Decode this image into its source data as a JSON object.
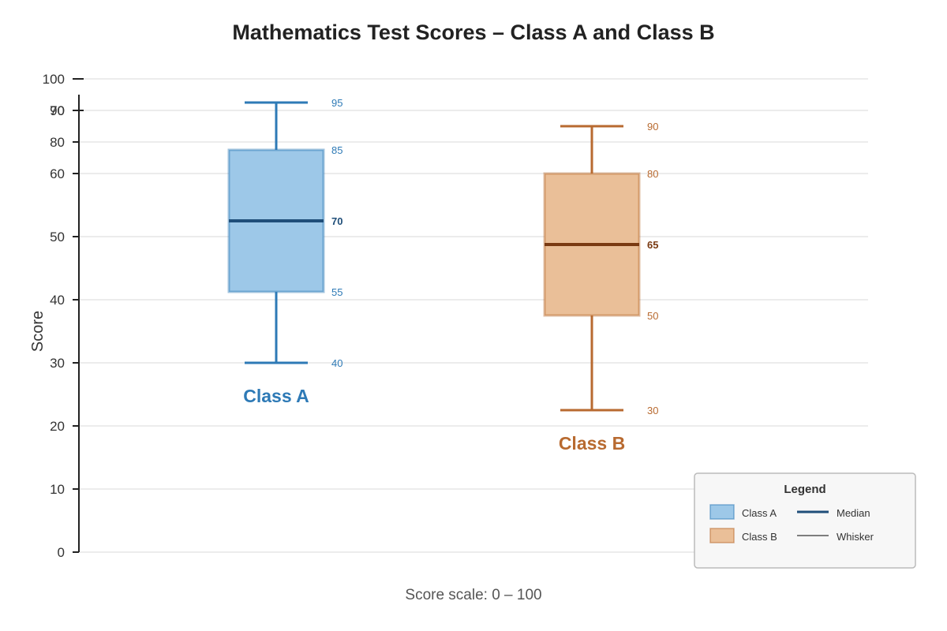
{
  "chart_data": {
    "type": "box",
    "title": "Mathematics Test Scores – Class A and Class B",
    "ylabel": "Score",
    "caption": "Score scale: 0 – 100",
    "ylim": [
      0,
      100
    ],
    "yticks_lower": [
      0,
      10,
      20,
      30,
      40,
      50,
      60,
      80,
      100
    ],
    "yticks_upper": [
      70,
      90
    ],
    "grid": true,
    "legend_position": "bottom-right",
    "series": [
      {
        "name": "Class A",
        "min": 40,
        "q1": 55,
        "median": 70,
        "q3": 85,
        "max": 95,
        "color": "#2e7ab6",
        "fill": "#9dc8e8",
        "median_color": "#1f4e79"
      },
      {
        "name": "Class B",
        "min": 30,
        "q1": 50,
        "median": 65,
        "q3": 80,
        "max": 90,
        "color": "#b86a30",
        "fill": "#eabf98",
        "median_color": "#7a3a12"
      }
    ],
    "legend": {
      "title": "Legend",
      "items": [
        "Class A",
        "Median",
        "Class B",
        "Whisker"
      ]
    }
  }
}
